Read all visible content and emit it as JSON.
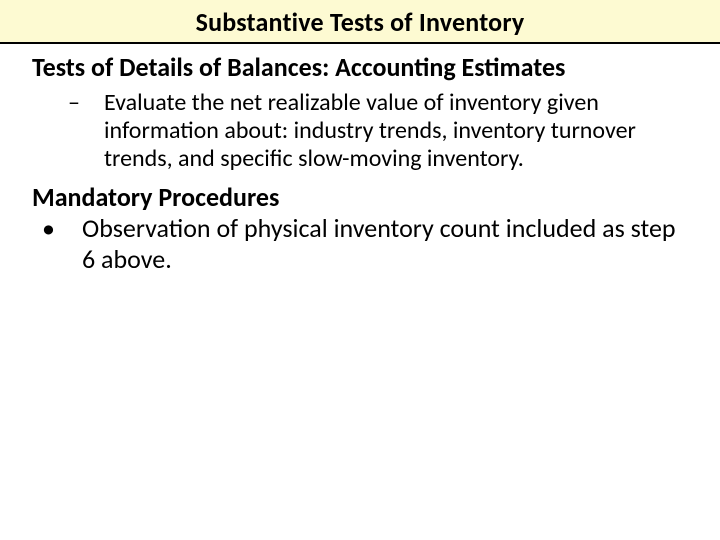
{
  "colors": {
    "title_bg": "#fdfad2",
    "title_border": "#000000",
    "text": "#000000",
    "page_bg": "#ffffff"
  },
  "typography": {
    "family": "Calibri",
    "title_size_pt": 20,
    "heading_size_pt": 20,
    "body_size_pt": 18
  },
  "title": "Substantive Tests of Inventory",
  "section1": {
    "heading": "Tests of Details of Balances: Accounting Estimates",
    "item": "Evaluate the net realizable value of inventory given information about: industry trends, inventory turnover trends, and specific slow-moving inventory."
  },
  "section2": {
    "heading": "Mandatory Procedures",
    "item": "Observation of physical inventory count included as step 6 above."
  }
}
